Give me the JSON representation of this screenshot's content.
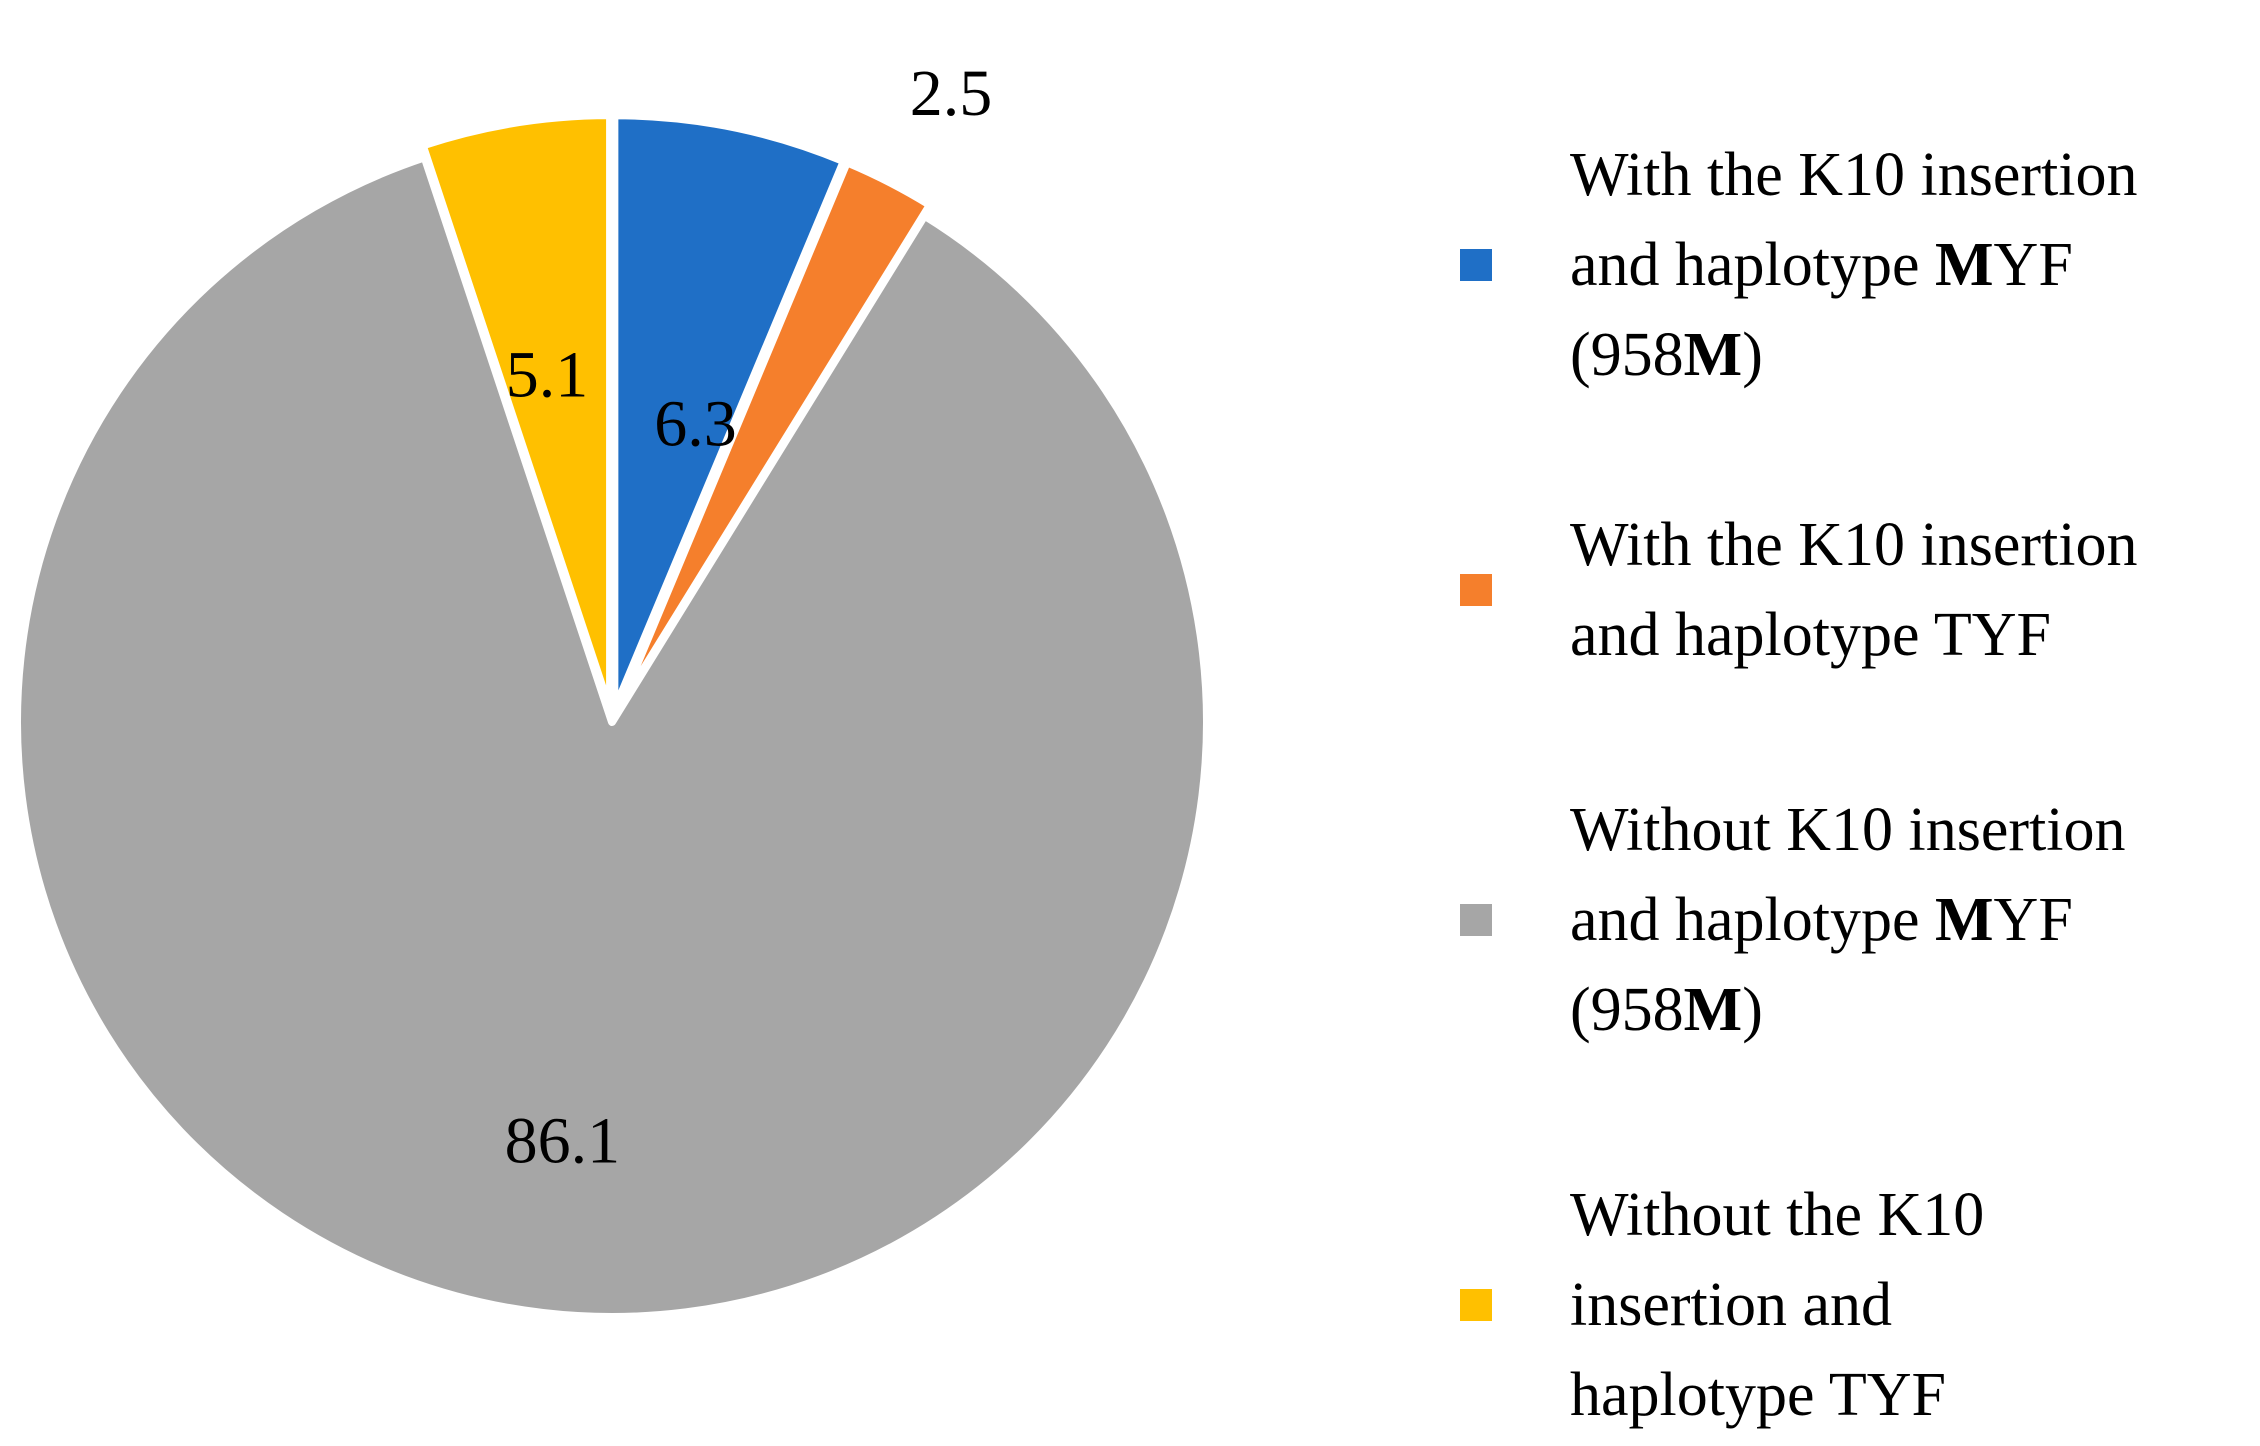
{
  "chart_data": {
    "type": "pie",
    "title": "",
    "start_angle_deg": 0,
    "direction": "clockwise",
    "slices": [
      {
        "label": "With the K10 insertion and haplotype MYF (958M)",
        "value": 6.3,
        "value_label": "6.3",
        "color": "#1F6FC6"
      },
      {
        "label": "With the K10 insertion and haplotype TYF",
        "value": 2.5,
        "value_label": "2.5",
        "color": "#F57F2C"
      },
      {
        "label": "Without K10 insertion and haplotype MYF (958M)",
        "value": 86.1,
        "value_label": "86.1",
        "color": "#A6A6A6"
      },
      {
        "label": "Without the K10 insertion and haplotype TYF",
        "value": 5.1,
        "value_label": "5.1",
        "color": "#FFC000"
      }
    ],
    "legend": {
      "position": "right",
      "items": [
        {
          "lines": [
            [
              "With the K10 insertion"
            ],
            [
              "and haplotype ",
              {
                "b": "M"
              },
              "YF"
            ],
            [
              "(958",
              {
                "b": "M"
              },
              ")"
            ]
          ]
        },
        {
          "lines": [
            [
              "With the K10 insertion"
            ],
            [
              "and haplotype TYF"
            ]
          ]
        },
        {
          "lines": [
            [
              "Without K10 insertion"
            ],
            [
              "and haplotype ",
              {
                "b": "M"
              },
              "YF"
            ],
            [
              "(958",
              {
                "b": "M"
              },
              ")"
            ]
          ]
        },
        {
          "lines": [
            [
              "Without the K10"
            ],
            [
              "insertion and"
            ],
            [
              "haplotype TYF"
            ]
          ]
        }
      ]
    }
  }
}
